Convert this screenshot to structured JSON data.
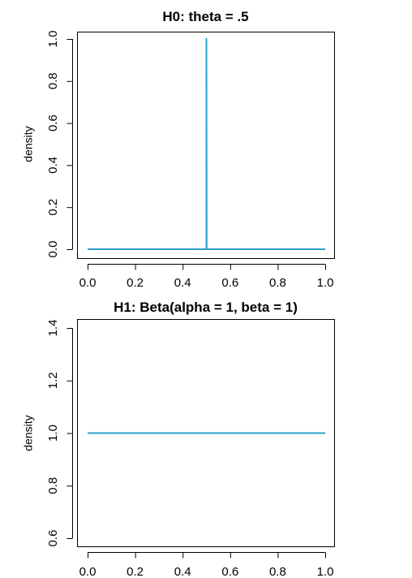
{
  "chart_data": [
    {
      "type": "line",
      "title": "H0: theta = .5",
      "xlabel": "",
      "ylabel": "density",
      "xlim": [
        0.0,
        1.0
      ],
      "ylim": [
        0.0,
        1.0
      ],
      "x_ticks": [
        "0.0",
        "0.2",
        "0.4",
        "0.6",
        "0.8",
        "1.0"
      ],
      "y_ticks": [
        "0.0",
        "0.2",
        "0.4",
        "0.6",
        "0.8",
        "1.0"
      ],
      "grid": false,
      "line_color": "#2aa0c8",
      "series": [
        {
          "x": [
            0.0,
            0.499,
            0.5,
            0.5,
            0.501,
            1.0
          ],
          "y": [
            0.0,
            0.0,
            0.0,
            1.0,
            0.0,
            0.0
          ]
        }
      ]
    },
    {
      "type": "line",
      "title": "H1: Beta(alpha = 1, beta = 1)",
      "xlabel": "",
      "ylabel": "density",
      "xlim": [
        0.0,
        1.0
      ],
      "ylim": [
        0.6,
        1.4
      ],
      "x_ticks": [
        "0.0",
        "0.2",
        "0.4",
        "0.6",
        "0.8",
        "1.0"
      ],
      "y_ticks": [
        "0.6",
        "0.8",
        "1.0",
        "1.2",
        "1.4"
      ],
      "grid": false,
      "line_color": "#2aa0c8",
      "series": [
        {
          "x": [
            0.0,
            1.0
          ],
          "y": [
            1.0,
            1.0
          ]
        }
      ]
    }
  ]
}
